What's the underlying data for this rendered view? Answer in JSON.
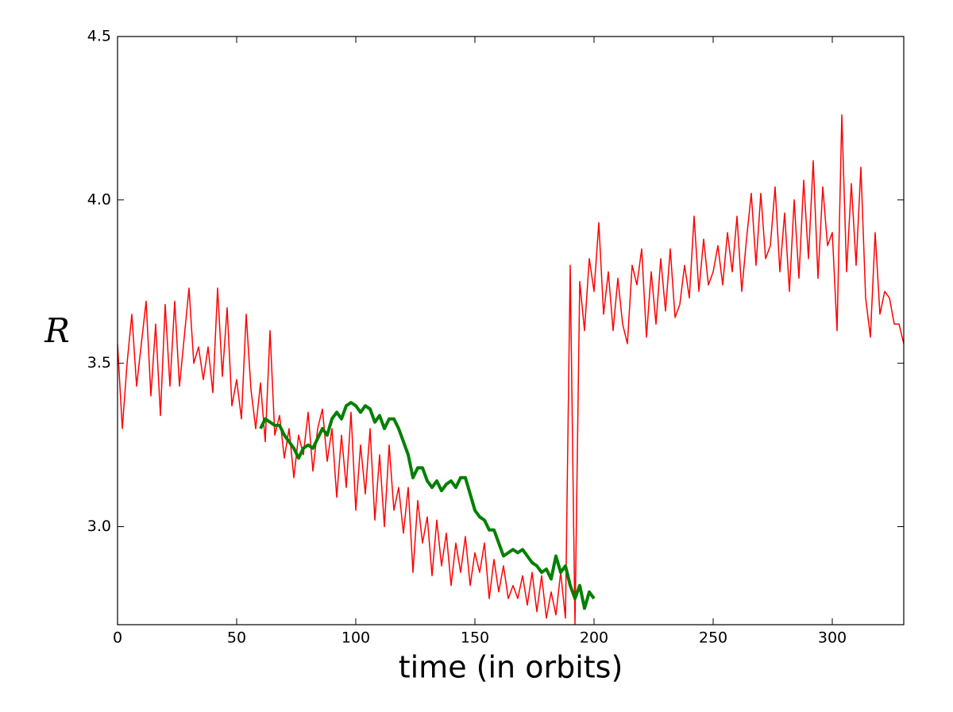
{
  "chart_data": {
    "type": "line",
    "xlabel": "time (in orbits)",
    "ylabel": "R",
    "xlim": [
      0,
      330
    ],
    "ylim": [
      2.7,
      4.5
    ],
    "xticks": [
      0,
      50,
      100,
      150,
      200,
      250,
      300
    ],
    "yticks": [
      {
        "value": 3,
        "label": "3.0"
      },
      3.5,
      {
        "value": 4,
        "label": "4.0"
      },
      4.5
    ],
    "grid": false,
    "series": [
      {
        "color": "#ff0000",
        "width": 1.5,
        "x": [
          0,
          2,
          4,
          6,
          8,
          10,
          12,
          14,
          16,
          18,
          20,
          22,
          24,
          26,
          28,
          30,
          32,
          34,
          36,
          38,
          40,
          42,
          44,
          46,
          48,
          50,
          52,
          54,
          56,
          58,
          60,
          62,
          64,
          66,
          68,
          70,
          72,
          74,
          76,
          78,
          80,
          82,
          84,
          86,
          88,
          90,
          92,
          94,
          96,
          98,
          100,
          102,
          104,
          106,
          108,
          110,
          112,
          114,
          116,
          118,
          120,
          122,
          124,
          126,
          128,
          130,
          132,
          134,
          136,
          138,
          140,
          142,
          144,
          146,
          148,
          150,
          152,
          154,
          156,
          158,
          160,
          162,
          164,
          166,
          168,
          170,
          172,
          174,
          176,
          178,
          180,
          182,
          184,
          186,
          188,
          190,
          192,
          194,
          196,
          198,
          200,
          202,
          204,
          206,
          208,
          210,
          212,
          214,
          216,
          218,
          220,
          222,
          224,
          226,
          228,
          230,
          232,
          234,
          236,
          238,
          240,
          242,
          244,
          246,
          248,
          250,
          252,
          254,
          256,
          258,
          260,
          262,
          264,
          266,
          268,
          270,
          272,
          274,
          276,
          278,
          280,
          282,
          284,
          286,
          288,
          290,
          292,
          294,
          296,
          298,
          300,
          302,
          304,
          306,
          308,
          310,
          312,
          314,
          316,
          318,
          320,
          322,
          324,
          326,
          328,
          330
        ],
        "values": [
          3.56,
          3.3,
          3.5,
          3.65,
          3.43,
          3.56,
          3.69,
          3.4,
          3.62,
          3.34,
          3.68,
          3.43,
          3.69,
          3.43,
          3.58,
          3.73,
          3.5,
          3.55,
          3.45,
          3.55,
          3.41,
          3.73,
          3.46,
          3.67,
          3.37,
          3.45,
          3.33,
          3.65,
          3.42,
          3.3,
          3.44,
          3.26,
          3.6,
          3.28,
          3.34,
          3.21,
          3.3,
          3.15,
          3.28,
          3.22,
          3.35,
          3.17,
          3.3,
          3.36,
          3.2,
          3.3,
          3.09,
          3.28,
          3.12,
          3.35,
          3.05,
          3.25,
          3.1,
          3.3,
          3.02,
          3.22,
          3.0,
          3.25,
          3.05,
          3.12,
          2.98,
          3.12,
          2.86,
          3.08,
          2.95,
          3.03,
          2.85,
          3.02,
          2.88,
          2.98,
          2.82,
          2.95,
          2.86,
          2.97,
          2.82,
          2.92,
          2.86,
          2.95,
          2.78,
          2.9,
          2.8,
          2.88,
          2.78,
          2.82,
          2.78,
          2.85,
          2.76,
          2.86,
          2.74,
          2.85,
          2.72,
          2.8,
          2.73,
          2.86,
          2.72,
          3.8,
          2.7,
          3.75,
          3.6,
          3.82,
          3.72,
          3.93,
          3.65,
          3.78,
          3.6,
          3.76,
          3.62,
          3.56,
          3.8,
          3.74,
          3.85,
          3.58,
          3.78,
          3.62,
          3.82,
          3.66,
          3.85,
          3.64,
          3.68,
          3.8,
          3.7,
          3.95,
          3.72,
          3.88,
          3.74,
          3.78,
          3.86,
          3.74,
          3.9,
          3.78,
          3.95,
          3.72,
          3.88,
          4.02,
          3.8,
          4.02,
          3.82,
          3.86,
          4.04,
          3.78,
          3.96,
          3.72,
          4.0,
          3.76,
          4.06,
          3.82,
          4.12,
          3.76,
          4.04,
          3.86,
          3.9,
          3.6,
          4.26,
          3.78,
          4.05,
          3.8,
          4.1,
          3.7,
          3.58,
          3.9,
          3.65,
          3.72,
          3.7,
          3.62,
          3.62,
          3.56
        ]
      },
      {
        "color": "#008000",
        "width": 4,
        "x": [
          60,
          62,
          64,
          66,
          68,
          70,
          72,
          74,
          76,
          78,
          80,
          82,
          84,
          86,
          88,
          90,
          92,
          94,
          96,
          98,
          100,
          102,
          104,
          106,
          108,
          110,
          112,
          114,
          116,
          118,
          120,
          122,
          124,
          126,
          128,
          130,
          132,
          134,
          136,
          138,
          140,
          142,
          144,
          146,
          148,
          150,
          152,
          154,
          156,
          158,
          160,
          162,
          164,
          166,
          168,
          170,
          172,
          174,
          176,
          178,
          180,
          182,
          184,
          186,
          188,
          190,
          192,
          194,
          196,
          198,
          200
        ],
        "values": [
          3.3,
          3.33,
          3.32,
          3.31,
          3.31,
          3.28,
          3.26,
          3.24,
          3.21,
          3.24,
          3.25,
          3.24,
          3.27,
          3.3,
          3.28,
          3.33,
          3.35,
          3.33,
          3.37,
          3.38,
          3.37,
          3.35,
          3.37,
          3.36,
          3.32,
          3.34,
          3.3,
          3.33,
          3.33,
          3.3,
          3.26,
          3.22,
          3.15,
          3.18,
          3.18,
          3.14,
          3.12,
          3.14,
          3.11,
          3.13,
          3.14,
          3.12,
          3.15,
          3.15,
          3.1,
          3.05,
          3.03,
          3.02,
          2.99,
          2.99,
          2.95,
          2.91,
          2.92,
          2.93,
          2.92,
          2.93,
          2.91,
          2.89,
          2.88,
          2.86,
          2.87,
          2.84,
          2.91,
          2.86,
          2.88,
          2.82,
          2.78,
          2.82,
          2.75,
          2.8,
          2.78
        ]
      }
    ]
  }
}
